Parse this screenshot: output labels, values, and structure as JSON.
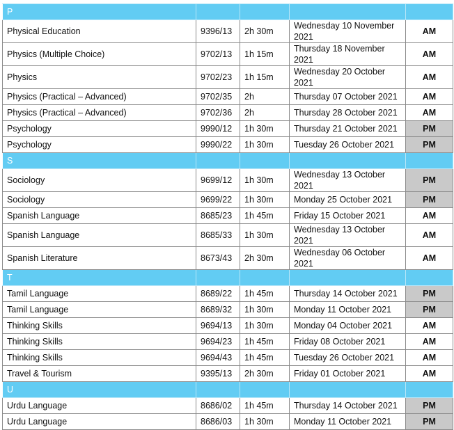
{
  "session_colors": {
    "AM": "#ffffff",
    "PM": "#c9c9c9"
  },
  "header_color": "#62ccf3",
  "sections": [
    {
      "letter": "P",
      "rows": [
        [
          "Physical Education",
          "9396/13",
          "2h 30m",
          "Wednesday 10 November 2021",
          "AM"
        ],
        [
          "Physics (Multiple Choice)",
          "9702/13",
          "1h 15m",
          "Thursday 18 November 2021",
          "AM"
        ],
        [
          "Physics",
          "9702/23",
          "1h 15m",
          "Wednesday 20 October 2021",
          "AM"
        ],
        [
          "Physics (Practical – Advanced)",
          "9702/35",
          "2h",
          "Thursday 07 October 2021",
          "AM"
        ],
        [
          "Physics (Practical – Advanced)",
          "9702/36",
          "2h",
          "Thursday 28 October 2021",
          "AM"
        ],
        [
          "Psychology",
          "9990/12",
          "1h 30m",
          "Thursday 21 October 2021",
          "PM"
        ],
        [
          "Psychology",
          "9990/22",
          "1h 30m",
          "Tuesday 26 October 2021",
          "PM"
        ]
      ]
    },
    {
      "letter": "S",
      "rows": [
        [
          "Sociology",
          "9699/12",
          "1h 30m",
          "Wednesday 13 October 2021",
          "PM"
        ],
        [
          "Sociology",
          "9699/22",
          "1h 30m",
          "Monday 25 October 2021",
          "PM"
        ],
        [
          "Spanish Language",
          "8685/23",
          "1h 45m",
          "Friday 15 October 2021",
          "AM"
        ],
        [
          "Spanish Language",
          "8685/33",
          "1h 30m",
          "Wednesday 13 October 2021",
          "AM"
        ],
        [
          "Spanish Literature",
          "8673/43",
          "2h 30m",
          "Wednesday 06 October 2021",
          "AM"
        ]
      ]
    },
    {
      "letter": "T",
      "rows": [
        [
          "Tamil Language",
          "8689/22",
          "1h 45m",
          "Thursday 14 October 2021",
          "PM"
        ],
        [
          "Tamil Language",
          "8689/32",
          "1h 30m",
          "Monday 11 October 2021",
          "PM"
        ],
        [
          "Thinking Skills",
          "9694/13",
          "1h 30m",
          "Monday 04 October 2021",
          "AM"
        ],
        [
          "Thinking Skills",
          "9694/23",
          "1h 45m",
          "Friday 08 October 2021",
          "AM"
        ],
        [
          "Thinking Skills",
          "9694/43",
          "1h 45m",
          "Tuesday 26 October 2021",
          "AM"
        ],
        [
          "Travel & Tourism",
          "9395/13",
          "2h 30m",
          "Friday 01 October 2021",
          "AM"
        ]
      ]
    },
    {
      "letter": "U",
      "rows": [
        [
          "Urdu Language",
          "8686/02",
          "1h 45m",
          "Thursday 14 October 2021",
          "PM"
        ],
        [
          "Urdu Language",
          "8686/03",
          "1h 30m",
          "Monday 11 October 2021",
          "PM"
        ]
      ]
    }
  ]
}
